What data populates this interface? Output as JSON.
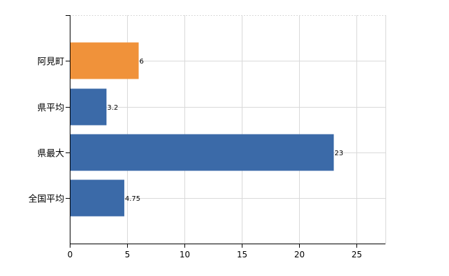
{
  "chart_data": {
    "type": "bar",
    "orientation": "horizontal",
    "categories": [
      "阿見町",
      "県平均",
      "県最大",
      "全国平均"
    ],
    "values": [
      6,
      3.2,
      23,
      4.75
    ],
    "value_labels": [
      "6",
      "3.2",
      "23",
      "4.75"
    ],
    "bar_colors": [
      "#f0923a",
      "#3b6aa8",
      "#3b6aa8",
      "#3b6aa8"
    ],
    "xlim": [
      0,
      27.5
    ],
    "xticks": [
      0,
      5,
      10,
      15,
      20,
      25
    ],
    "xtick_labels": [
      "0",
      "5",
      "10",
      "15",
      "20",
      "25"
    ],
    "grid": true,
    "grid_color": "#d9d9d9",
    "title": "",
    "xlabel": "",
    "ylabel": ""
  }
}
